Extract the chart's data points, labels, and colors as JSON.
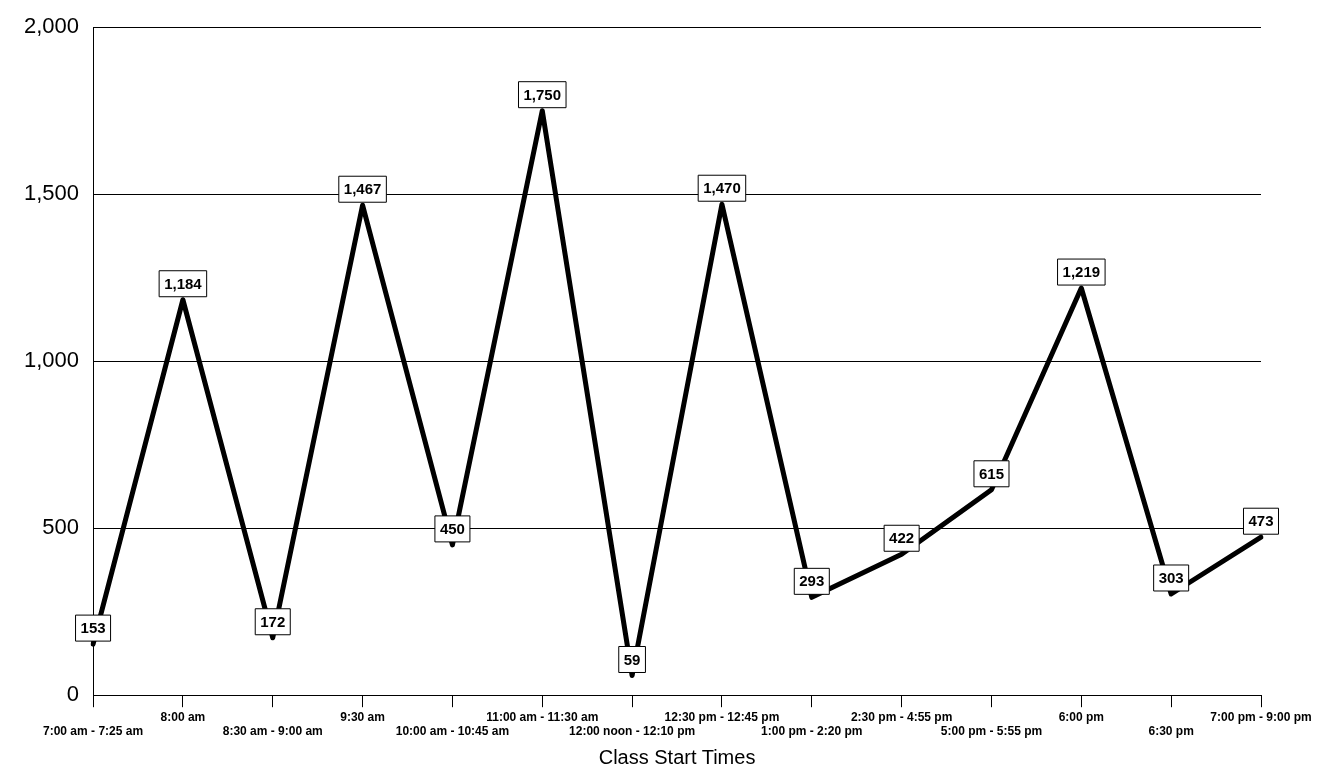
{
  "chart_data": {
    "type": "line",
    "xlabel": "Class Start Times",
    "categories": [
      "7:00 am - 7:25 am",
      "8:00 am",
      "8:30 am - 9:00 am",
      "9:30 am",
      "10:00 am - 10:45 am",
      "11:00 am - 11:30 am",
      "12:00 noon - 12:10 pm",
      "12:30 pm - 12:45 pm",
      "1:00 pm - 2:20 pm",
      "2:30 pm - 4:55 pm",
      "5:00 pm - 5:55 pm",
      "6:00 pm",
      "6:30 pm",
      "7:00 pm - 9:00 pm"
    ],
    "series": [
      {
        "color": "#000000",
        "values": [
          153,
          1184,
          172,
          1467,
          450,
          1750,
          59,
          1470,
          293,
          422,
          615,
          1219,
          303,
          473
        ],
        "value_labels": [
          "153",
          "1,184",
          "172",
          "1,467",
          "450",
          "1,750",
          "59",
          "1,470",
          "293",
          "422",
          "615",
          "1,219",
          "303",
          "473"
        ]
      }
    ],
    "ylim": [
      0,
      2000
    ],
    "yticks": [
      0,
      500,
      {
        "value": 1000,
        "label": "1,000"
      },
      {
        "value": 1500,
        "label": "1,500"
      },
      {
        "value": 2000,
        "label": "2,000"
      }
    ],
    "grid": "y",
    "legend": false,
    "marker": "none",
    "line_style": "solid"
  }
}
